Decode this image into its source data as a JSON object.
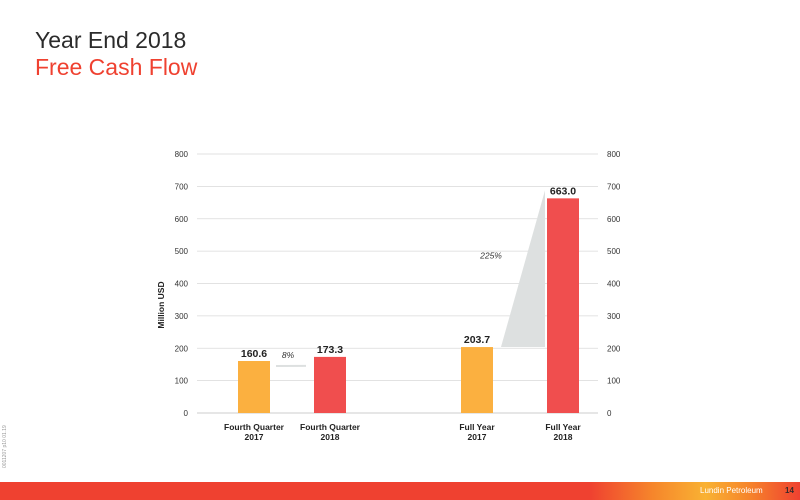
{
  "slide": {
    "title": "Year End 2018",
    "subtitle": "Free Cash Flow",
    "side_code": "0011207 p10 01.19",
    "footer_brand": "Lundin Petroleum",
    "page_number": "14"
  },
  "colors": {
    "accent": "#ef4130",
    "bar_orange": "#fbb040",
    "bar_red": "#f04e4e",
    "connector": "#dde0e0",
    "gridline": "#d9d9d9"
  },
  "chart_data": {
    "type": "bar",
    "ylabel": "Million USD",
    "ylim": [
      0,
      800
    ],
    "yticks": [
      0,
      100,
      200,
      300,
      400,
      500,
      600,
      700,
      800
    ],
    "secondary_axis": true,
    "grid": true,
    "legend": "none",
    "categories": [
      [
        "Fourth Quarter",
        "2017"
      ],
      [
        "Fourth Quarter",
        "2018"
      ],
      [
        "Full Year",
        "2017"
      ],
      [
        "Full Year",
        "2018"
      ]
    ],
    "values": [
      160.6,
      173.3,
      203.7,
      663.0
    ],
    "value_labels": [
      "160.6",
      "173.3",
      "203.7",
      "663.0"
    ],
    "bar_colors": [
      "#fbb040",
      "#f04e4e",
      "#fbb040",
      "#f04e4e"
    ],
    "comparisons": [
      {
        "from": 0,
        "to": 1,
        "label": "8%"
      },
      {
        "from": 2,
        "to": 3,
        "label": "225%"
      }
    ]
  }
}
